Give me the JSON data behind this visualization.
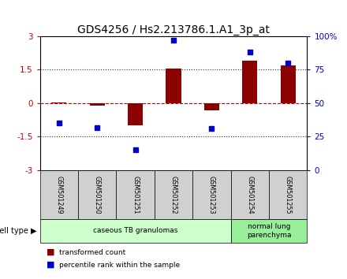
{
  "title": "GDS4256 / Hs2.213786.1.A1_3p_at",
  "samples": [
    "GSM501249",
    "GSM501250",
    "GSM501251",
    "GSM501252",
    "GSM501253",
    "GSM501254",
    "GSM501255"
  ],
  "transformed_count": [
    0.02,
    -0.12,
    -1.0,
    1.55,
    -0.32,
    1.9,
    1.7
  ],
  "percentile_rank": [
    35,
    32,
    15,
    97,
    31,
    88,
    80
  ],
  "bar_color": "#8B0000",
  "dot_color": "#0000CC",
  "ylim_left": [
    -3,
    3
  ],
  "ylim_right": [
    0,
    100
  ],
  "yticks_left": [
    -3,
    -1.5,
    0,
    1.5,
    3
  ],
  "ytick_labels_left": [
    "-3",
    "-1.5",
    "0",
    "1.5",
    "3"
  ],
  "yticks_right": [
    0,
    25,
    50,
    75,
    100
  ],
  "ytick_labels_right": [
    "0",
    "25",
    "50",
    "75",
    "100%"
  ],
  "zero_line_color": "#CC0000",
  "dotted_line_color": "#333333",
  "groups": [
    {
      "label": "caseous TB granulomas",
      "samples": [
        0,
        1,
        2,
        3,
        4
      ],
      "color": "#ccffcc"
    },
    {
      "label": "normal lung\nparenchyma",
      "samples": [
        5,
        6
      ],
      "color": "#99ee99"
    }
  ],
  "group_label_prefix": "cell type",
  "legend_bar_label": "transformed count",
  "legend_dot_label": "percentile rank within the sample",
  "background_color": "#ffffff",
  "plot_bg_color": "#ffffff",
  "title_fontsize": 10,
  "tick_fontsize": 7.5,
  "sample_box_color": "#d0d0d0",
  "bar_width": 0.4
}
